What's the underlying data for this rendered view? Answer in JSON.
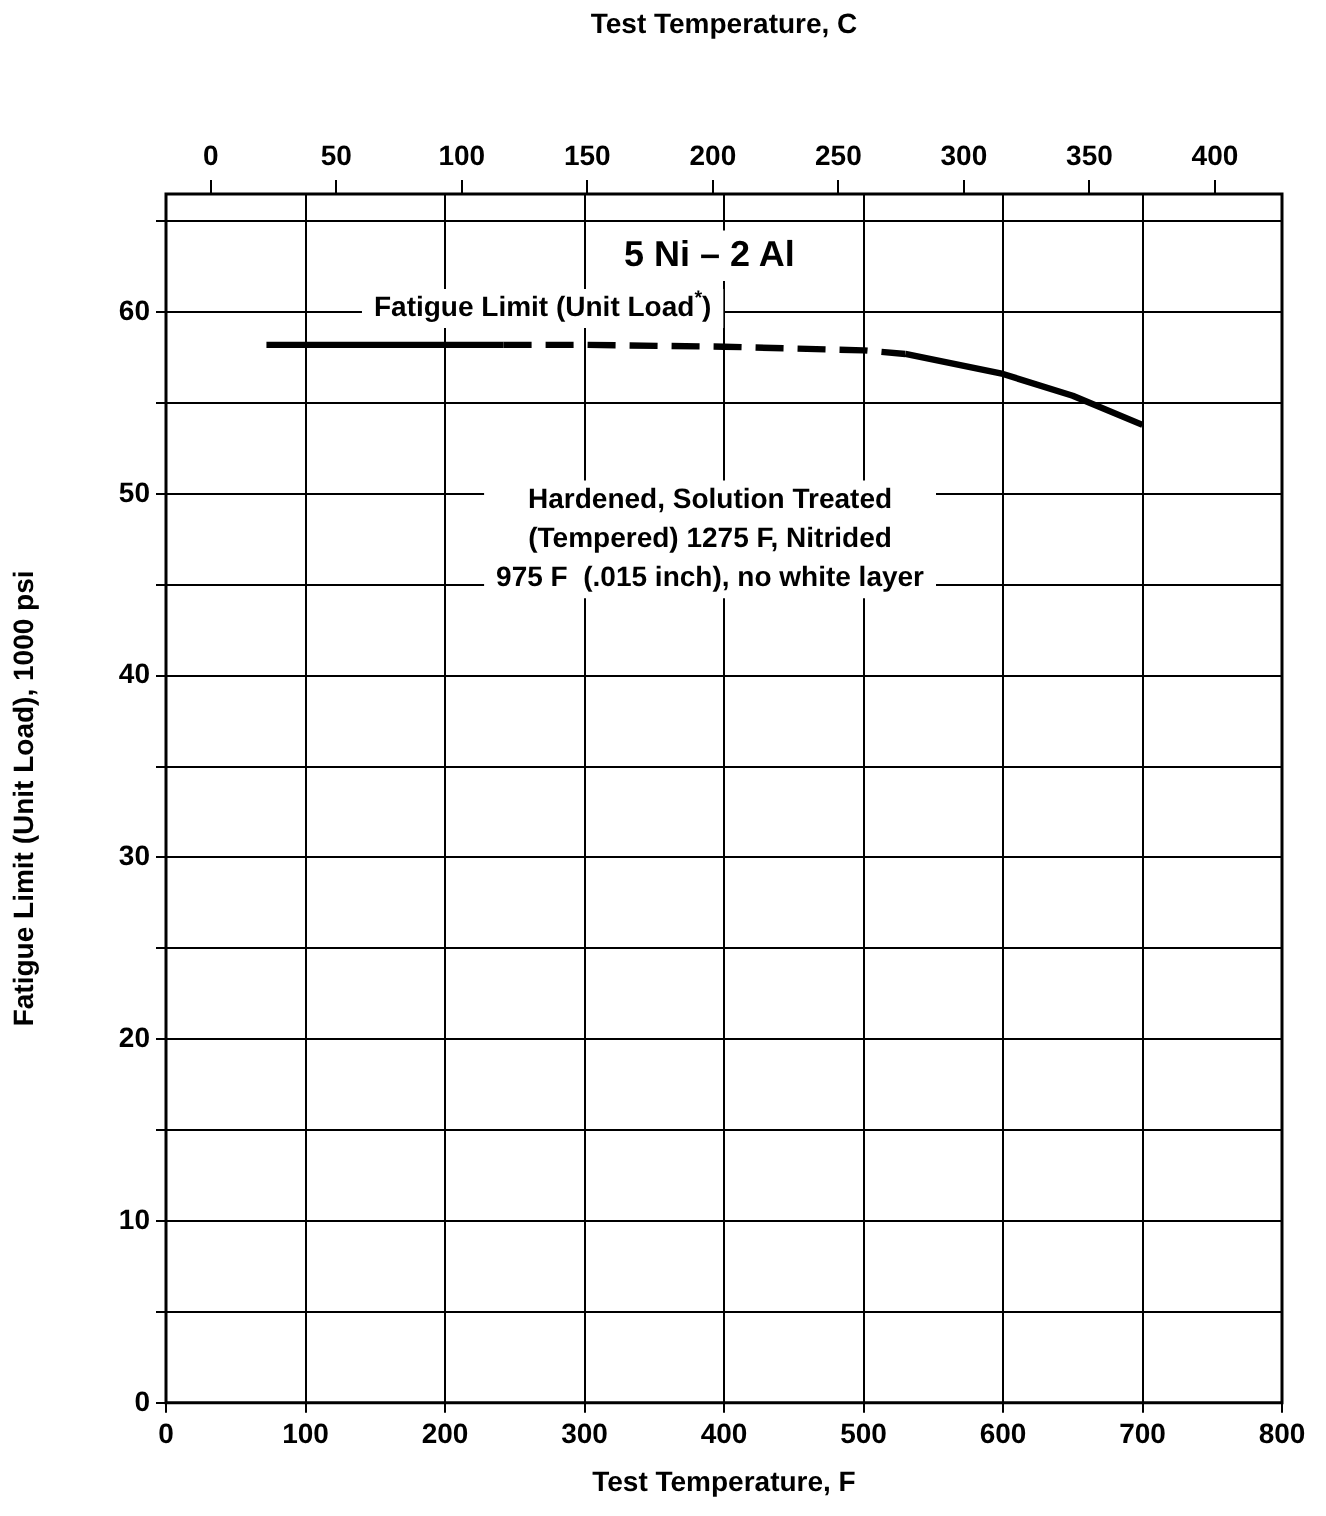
{
  "chart_data": {
    "type": "line",
    "xlabel": "Test Temperature, F",
    "x2label": "Test Temperature, C",
    "ylabel": "Fatigue Limit (Unit Load), 1000 psi",
    "xlim": [
      0,
      800
    ],
    "xticks": [
      0,
      100,
      200,
      300,
      400,
      500,
      600,
      700,
      800
    ],
    "x2lim": [
      -17.8,
      426.7
    ],
    "x2ticks": [
      0,
      50,
      100,
      150,
      200,
      250,
      300,
      350,
      400
    ],
    "ylim": [
      0,
      66.5
    ],
    "yticks": [
      0,
      {
        "value": 5,
        "label": null
      },
      10,
      {
        "value": 15,
        "label": null
      },
      20,
      {
        "value": 25,
        "label": null
      },
      30,
      {
        "value": 35,
        "label": null
      },
      40,
      {
        "value": 45,
        "label": null
      },
      50,
      {
        "value": 55,
        "label": null
      },
      60,
      {
        "value": 65,
        "label": null
      }
    ],
    "grid": true,
    "legend": false,
    "marker": "none",
    "series": [
      {
        "color": "#000000",
        "line_style": "solid",
        "x": [
          72,
          150,
          242
        ],
        "values": [
          58.2,
          58.2,
          58.2
        ]
      },
      {
        "color": "#000000",
        "line_style": "dashed",
        "x": [
          242,
          300,
          400,
          450,
          500,
          530
        ],
        "values": [
          58.2,
          58.2,
          58.1,
          58,
          57.9,
          57.7
        ]
      },
      {
        "color": "#000000",
        "line_style": "solid",
        "x": [
          530,
          600,
          650,
          700
        ],
        "values": [
          57.7,
          56.6,
          55.4,
          53.8
        ]
      }
    ],
    "annotations": [
      "5 Ni – 2 Al",
      "Fatigue Limit (Unit Load$^{*}$)",
      "Hardened, Solution Treated\n(Tempered) 1275 F, Nitrided\n975 F  (.015 inch), no white layer"
    ]
  }
}
